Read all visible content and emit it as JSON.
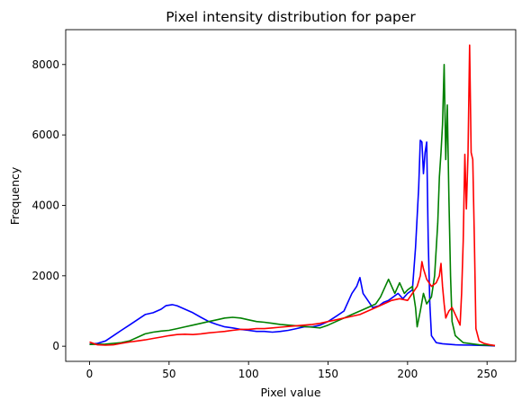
{
  "chart_data": {
    "type": "line",
    "title": "Pixel intensity distribution for paper",
    "xlabel": "Pixel value",
    "ylabel": "Frequency",
    "xlim": [
      -15,
      268
    ],
    "ylim": [
      -430,
      8990
    ],
    "xticks": [
      0,
      50,
      100,
      150,
      200,
      250
    ],
    "yticks": [
      0,
      2000,
      4000,
      6000,
      8000
    ],
    "grid": false,
    "legend": "none",
    "series": [
      {
        "color": "#0000ff",
        "points": [
          [
            0,
            60
          ],
          [
            5,
            80
          ],
          [
            10,
            150
          ],
          [
            15,
            300
          ],
          [
            20,
            450
          ],
          [
            25,
            600
          ],
          [
            30,
            750
          ],
          [
            35,
            900
          ],
          [
            40,
            950
          ],
          [
            45,
            1050
          ],
          [
            48,
            1150
          ],
          [
            52,
            1180
          ],
          [
            55,
            1150
          ],
          [
            60,
            1050
          ],
          [
            65,
            950
          ],
          [
            70,
            820
          ],
          [
            75,
            700
          ],
          [
            80,
            620
          ],
          [
            85,
            550
          ],
          [
            90,
            520
          ],
          [
            95,
            480
          ],
          [
            100,
            450
          ],
          [
            105,
            420
          ],
          [
            110,
            420
          ],
          [
            115,
            400
          ],
          [
            120,
            420
          ],
          [
            125,
            450
          ],
          [
            130,
            500
          ],
          [
            135,
            550
          ],
          [
            140,
            550
          ],
          [
            145,
            600
          ],
          [
            150,
            700
          ],
          [
            155,
            850
          ],
          [
            160,
            1000
          ],
          [
            163,
            1300
          ],
          [
            165,
            1500
          ],
          [
            168,
            1700
          ],
          [
            170,
            1950
          ],
          [
            172,
            1500
          ],
          [
            175,
            1300
          ],
          [
            178,
            1100
          ],
          [
            182,
            1150
          ],
          [
            185,
            1250
          ],
          [
            188,
            1300
          ],
          [
            191,
            1400
          ],
          [
            194,
            1500
          ],
          [
            197,
            1350
          ],
          [
            200,
            1500
          ],
          [
            203,
            1600
          ],
          [
            205,
            2800
          ],
          [
            207,
            4500
          ],
          [
            208,
            5850
          ],
          [
            209,
            5800
          ],
          [
            210,
            4900
          ],
          [
            211,
            5500
          ],
          [
            212,
            5800
          ],
          [
            213,
            3000
          ],
          [
            214,
            1200
          ],
          [
            215,
            300
          ],
          [
            218,
            100
          ],
          [
            222,
            70
          ],
          [
            230,
            40
          ],
          [
            240,
            30
          ],
          [
            250,
            20
          ],
          [
            255,
            10
          ]
        ]
      },
      {
        "color": "#008000",
        "points": [
          [
            0,
            50
          ],
          [
            10,
            60
          ],
          [
            20,
            100
          ],
          [
            25,
            150
          ],
          [
            30,
            250
          ],
          [
            35,
            350
          ],
          [
            40,
            400
          ],
          [
            45,
            430
          ],
          [
            50,
            450
          ],
          [
            55,
            500
          ],
          [
            60,
            550
          ],
          [
            65,
            600
          ],
          [
            70,
            650
          ],
          [
            75,
            700
          ],
          [
            80,
            750
          ],
          [
            85,
            800
          ],
          [
            90,
            820
          ],
          [
            95,
            800
          ],
          [
            100,
            750
          ],
          [
            105,
            700
          ],
          [
            110,
            680
          ],
          [
            115,
            650
          ],
          [
            120,
            620
          ],
          [
            125,
            600
          ],
          [
            130,
            580
          ],
          [
            135,
            560
          ],
          [
            140,
            540
          ],
          [
            145,
            520
          ],
          [
            150,
            600
          ],
          [
            155,
            700
          ],
          [
            160,
            800
          ],
          [
            165,
            900
          ],
          [
            170,
            1000
          ],
          [
            175,
            1100
          ],
          [
            180,
            1200
          ],
          [
            183,
            1400
          ],
          [
            186,
            1700
          ],
          [
            188,
            1900
          ],
          [
            190,
            1700
          ],
          [
            192,
            1500
          ],
          [
            195,
            1800
          ],
          [
            198,
            1500
          ],
          [
            200,
            1600
          ],
          [
            203,
            1700
          ],
          [
            205,
            1100
          ],
          [
            206,
            550
          ],
          [
            208,
            1000
          ],
          [
            210,
            1500
          ],
          [
            212,
            1200
          ],
          [
            215,
            1400
          ],
          [
            217,
            2000
          ],
          [
            219,
            3500
          ],
          [
            220,
            4800
          ],
          [
            221,
            5500
          ],
          [
            222,
            6300
          ],
          [
            223,
            8000
          ],
          [
            224,
            5300
          ],
          [
            225,
            6850
          ],
          [
            226,
            4200
          ],
          [
            227,
            2000
          ],
          [
            228,
            700
          ],
          [
            230,
            300
          ],
          [
            235,
            100
          ],
          [
            245,
            40
          ],
          [
            255,
            20
          ]
        ]
      },
      {
        "color": "#ff0000",
        "points": [
          [
            0,
            120
          ],
          [
            5,
            40
          ],
          [
            10,
            30
          ],
          [
            15,
            40
          ],
          [
            20,
            80
          ],
          [
            25,
            120
          ],
          [
            30,
            150
          ],
          [
            35,
            180
          ],
          [
            40,
            220
          ],
          [
            45,
            260
          ],
          [
            50,
            300
          ],
          [
            55,
            330
          ],
          [
            60,
            340
          ],
          [
            65,
            330
          ],
          [
            70,
            350
          ],
          [
            75,
            380
          ],
          [
            80,
            400
          ],
          [
            85,
            420
          ],
          [
            90,
            450
          ],
          [
            95,
            480
          ],
          [
            100,
            480
          ],
          [
            105,
            500
          ],
          [
            110,
            500
          ],
          [
            115,
            520
          ],
          [
            120,
            540
          ],
          [
            125,
            560
          ],
          [
            130,
            580
          ],
          [
            135,
            600
          ],
          [
            140,
            620
          ],
          [
            145,
            650
          ],
          [
            150,
            700
          ],
          [
            155,
            750
          ],
          [
            160,
            800
          ],
          [
            165,
            850
          ],
          [
            170,
            900
          ],
          [
            175,
            1000
          ],
          [
            180,
            1100
          ],
          [
            185,
            1200
          ],
          [
            190,
            1300
          ],
          [
            195,
            1350
          ],
          [
            200,
            1300
          ],
          [
            203,
            1500
          ],
          [
            206,
            1700
          ],
          [
            208,
            2000
          ],
          [
            209,
            2400
          ],
          [
            210,
            2200
          ],
          [
            212,
            1900
          ],
          [
            215,
            1700
          ],
          [
            218,
            1800
          ],
          [
            220,
            2000
          ],
          [
            221,
            2350
          ],
          [
            222,
            1700
          ],
          [
            223,
            1200
          ],
          [
            224,
            800
          ],
          [
            225,
            900
          ],
          [
            226,
            1000
          ],
          [
            228,
            1100
          ],
          [
            230,
            900
          ],
          [
            232,
            700
          ],
          [
            233,
            600
          ],
          [
            234,
            1500
          ],
          [
            235,
            3000
          ],
          [
            236,
            5450
          ],
          [
            237,
            3900
          ],
          [
            238,
            5450
          ],
          [
            239,
            8550
          ],
          [
            240,
            5500
          ],
          [
            241,
            5300
          ],
          [
            242,
            3000
          ],
          [
            243,
            500
          ],
          [
            245,
            150
          ],
          [
            248,
            80
          ],
          [
            252,
            40
          ],
          [
            255,
            20
          ]
        ]
      }
    ]
  }
}
